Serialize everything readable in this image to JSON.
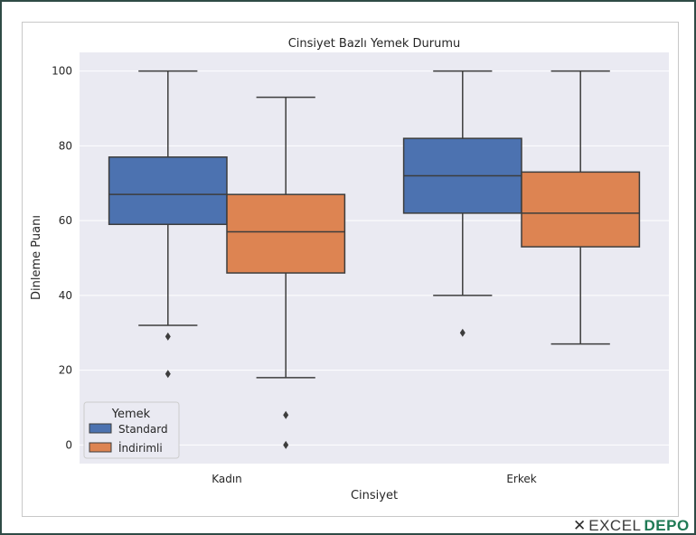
{
  "chart_data": {
    "type": "box",
    "title": "Cinsiyet Bazlı Yemek Durumu",
    "xlabel": "Cinsiyet",
    "ylabel": "Dinleme Puanı",
    "ylim": [
      -5,
      105
    ],
    "yticks": [
      0,
      20,
      40,
      60,
      80,
      100
    ],
    "grid": true,
    "categories": [
      "Kadın",
      "Erkek"
    ],
    "legend": {
      "title": "Yemek",
      "placement": "bottom-left"
    },
    "series": [
      {
        "name": "Standard",
        "color": "#4c72b0",
        "boxes": [
          {
            "category": "Kadın",
            "whisker_low": 32,
            "q1": 59,
            "median": 67,
            "q3": 77,
            "whisker_high": 100,
            "outliers": [
              29,
              19
            ]
          },
          {
            "category": "Erkek",
            "whisker_low": 40,
            "q1": 62,
            "median": 72,
            "q3": 82,
            "whisker_high": 100,
            "outliers": [
              30
            ]
          }
        ]
      },
      {
        "name": "İndirimli",
        "color": "#dd8452",
        "boxes": [
          {
            "category": "Kadın",
            "whisker_low": 18,
            "q1": 46,
            "median": 57,
            "q3": 67,
            "whisker_high": 93,
            "outliers": [
              8,
              0
            ]
          },
          {
            "category": "Erkek",
            "whisker_low": 27,
            "q1": 53,
            "median": 62,
            "q3": 73,
            "whisker_high": 100,
            "outliers": []
          }
        ]
      }
    ]
  },
  "colors": {
    "plot_bg": "#eaeaf2",
    "grid": "#ffffff",
    "line": "#3d3d3d",
    "frame": "#2f4b46"
  },
  "watermark": {
    "icon": "x-mark-icon",
    "text_a": "EXCEL",
    "text_b": "DEPO"
  }
}
